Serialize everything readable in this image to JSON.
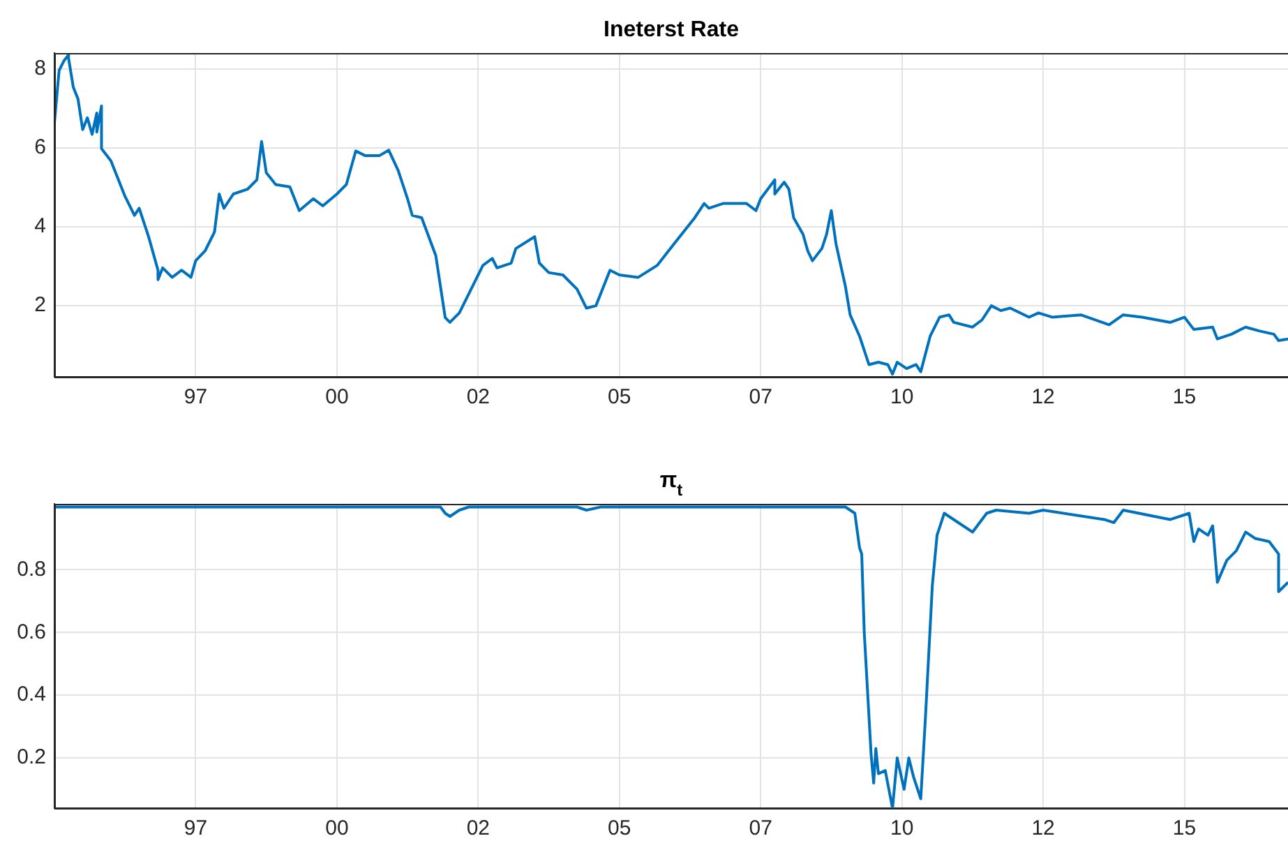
{
  "chart_data": [
    {
      "type": "line",
      "title": "Ineterst Rate",
      "grid": true,
      "xlim": [
        "1995-01",
        "2016-11"
      ],
      "ylim": [
        0.2,
        8.4
      ],
      "yticks": [
        2,
        4,
        6,
        8
      ],
      "xticks": [
        {
          "value": "1997-07",
          "label": "97"
        },
        {
          "value": "2000-01",
          "label": "00"
        },
        {
          "value": "2002-07",
          "label": "02"
        },
        {
          "value": "2005-01",
          "label": "05"
        },
        {
          "value": "2007-07",
          "label": "07"
        },
        {
          "value": "2010-01",
          "label": "10"
        },
        {
          "value": "2012-07",
          "label": "12"
        },
        {
          "value": "2015-01",
          "label": "15"
        }
      ],
      "series": [
        {
          "color": "#0072bd",
          "x": [
            "1995-01",
            "1995-02",
            "1995-03",
            "1995-04",
            "1995-04",
            "1995-05",
            "1995-06",
            "1995-07",
            "1995-08",
            "1995-09",
            "1995-10",
            "1995-10",
            "1995-11",
            "1995-11",
            "1996-01",
            "1996-03",
            "1996-04",
            "1996-06",
            "1996-07",
            "1996-09",
            "1996-11",
            "1996-11",
            "1996-12",
            "1997-02",
            "1997-04",
            "1997-06",
            "1997-07",
            "1997-09",
            "1997-11",
            "1997-12",
            "1998-01",
            "1998-03",
            "1998-06",
            "1998-08",
            "1998-09",
            "1998-10",
            "1998-12",
            "1999-03",
            "1999-05",
            "1999-08",
            "1999-10",
            "2000-01",
            "2000-03",
            "2000-05",
            "2000-07",
            "2000-10",
            "2000-12",
            "2001-02",
            "2001-04",
            "2001-05",
            "2001-07",
            "2001-10",
            "2001-12",
            "2002-01",
            "2002-03",
            "2002-08",
            "2002-10",
            "2002-11",
            "2003-02",
            "2003-03",
            "2003-07",
            "2003-08",
            "2003-10",
            "2004-01",
            "2004-04",
            "2004-06",
            "2004-08",
            "2004-11",
            "2005-01",
            "2005-05",
            "2005-09",
            "2006-01",
            "2006-05",
            "2006-07",
            "2006-08",
            "2006-11",
            "2007-04",
            "2007-06",
            "2007-07",
            "2007-10",
            "2007-10",
            "2007-12",
            "2008-01",
            "2008-02",
            "2008-04",
            "2008-05",
            "2008-06",
            "2008-08",
            "2008-09",
            "2008-10",
            "2008-11",
            "2009-01",
            "2009-02",
            "2009-04",
            "2009-06",
            "2009-08",
            "2009-10",
            "2009-11",
            "2009-12",
            "2010-02",
            "2010-04",
            "2010-05",
            "2010-07",
            "2010-09",
            "2010-11",
            "2010-12",
            "2011-04",
            "2011-06",
            "2011-08",
            "2011-10",
            "2011-12",
            "2012-04",
            "2012-06",
            "2012-09",
            "2013-03",
            "2013-09",
            "2013-12",
            "2014-04",
            "2014-10",
            "2015-01",
            "2015-03",
            "2015-07",
            "2015-08",
            "2015-11",
            "2016-02",
            "2016-05",
            "2016-08",
            "2016-09",
            "2016-11"
          ],
          "values": [
            6.64,
            7.96,
            8.2,
            8.35,
            8.27,
            7.54,
            7.24,
            6.46,
            6.76,
            6.34,
            6.88,
            6.4,
            7.06,
            5.98,
            5.67,
            5.07,
            4.77,
            4.29,
            4.47,
            3.75,
            2.9,
            2.66,
            2.96,
            2.72,
            2.9,
            2.72,
            3.14,
            3.39,
            3.87,
            4.83,
            4.47,
            4.83,
            4.95,
            5.19,
            6.16,
            5.37,
            5.07,
            5.01,
            4.41,
            4.71,
            4.53,
            4.83,
            5.07,
            5.92,
            5.8,
            5.8,
            5.94,
            5.43,
            4.71,
            4.29,
            4.23,
            3.27,
            1.7,
            1.58,
            1.82,
            3.02,
            3.2,
            2.96,
            3.08,
            3.45,
            3.75,
            3.08,
            2.84,
            2.78,
            2.42,
            1.94,
            2.0,
            2.9,
            2.78,
            2.72,
            3.02,
            3.63,
            4.23,
            4.59,
            4.47,
            4.59,
            4.59,
            4.41,
            4.71,
            5.19,
            4.83,
            5.13,
            4.95,
            4.23,
            3.81,
            3.39,
            3.14,
            3.45,
            3.81,
            4.41,
            3.57,
            2.49,
            1.77,
            1.23,
            0.51,
            0.57,
            0.51,
            0.27,
            0.57,
            0.41,
            0.51,
            0.33,
            1.23,
            1.71,
            1.77,
            1.58,
            1.46,
            1.64,
            2.0,
            1.88,
            1.94,
            1.71,
            1.82,
            1.71,
            1.77,
            1.52,
            1.77,
            1.71,
            1.58,
            1.71,
            1.4,
            1.46,
            1.16,
            1.28,
            1.46,
            1.36,
            1.28,
            1.12,
            1.16
          ]
        }
      ]
    },
    {
      "type": "line",
      "title": "π$_{t}$",
      "grid": true,
      "xlim": [
        "1995-01",
        "2016-11"
      ],
      "ylim": [
        0.04,
        1.01
      ],
      "yticks": [
        0.2,
        0.4,
        0.6,
        0.8
      ],
      "xticks": [
        {
          "value": "1997-07",
          "label": "97"
        },
        {
          "value": "2000-01",
          "label": "00"
        },
        {
          "value": "2002-07",
          "label": "02"
        },
        {
          "value": "2005-01",
          "label": "05"
        },
        {
          "value": "2007-07",
          "label": "07"
        },
        {
          "value": "2010-01",
          "label": "10"
        },
        {
          "value": "2012-07",
          "label": "12"
        },
        {
          "value": "2015-01",
          "label": "15"
        }
      ],
      "series": [
        {
          "color": "#0072bd",
          "x": [
            "1995-01",
            "2001-11",
            "2001-12",
            "2002-01",
            "2002-03",
            "2002-05",
            "2004-04",
            "2004-06",
            "2004-09",
            "2009-01-01",
            "2009-03-01",
            "2009-04-01",
            "2009-04-15",
            "2009-05-01",
            "2009-06-15",
            "2009-07-01",
            "2009-07-15",
            "2009-08-01",
            "2009-09-15",
            "2009-11-01",
            "2009-12-01",
            "2010-01-15",
            "2010-02-15",
            "2010-03-15",
            "2010-05-01",
            "2010-06-01",
            "2010-07-15",
            "2010-08-15",
            "2010-10-01",
            "2010-12",
            "2011-04",
            "2011-07",
            "2011-09",
            "2012-04",
            "2012-07",
            "2013-08",
            "2013-10",
            "2013-12",
            "2014-10",
            "2015-02",
            "2015-03",
            "2015-04",
            "2015-06",
            "2015-07",
            "2015-08",
            "2015-10",
            "2015-12",
            "2016-02",
            "2016-04",
            "2016-07",
            "2016-09",
            "2016-09",
            "2016-11"
          ],
          "values": [
            1.0,
            1.0,
            0.98,
            0.97,
            0.99,
            1.0,
            1.0,
            0.99,
            1.0,
            1.0,
            0.98,
            0.87,
            0.85,
            0.6,
            0.21,
            0.12,
            0.23,
            0.15,
            0.16,
            0.04,
            0.2,
            0.1,
            0.2,
            0.14,
            0.07,
            0.33,
            0.75,
            0.91,
            0.98,
            0.96,
            0.92,
            0.98,
            0.99,
            0.98,
            0.99,
            0.96,
            0.95,
            0.99,
            0.96,
            0.98,
            0.89,
            0.93,
            0.91,
            0.94,
            0.76,
            0.83,
            0.86,
            0.92,
            0.9,
            0.89,
            0.85,
            0.73,
            0.76
          ]
        }
      ]
    }
  ]
}
